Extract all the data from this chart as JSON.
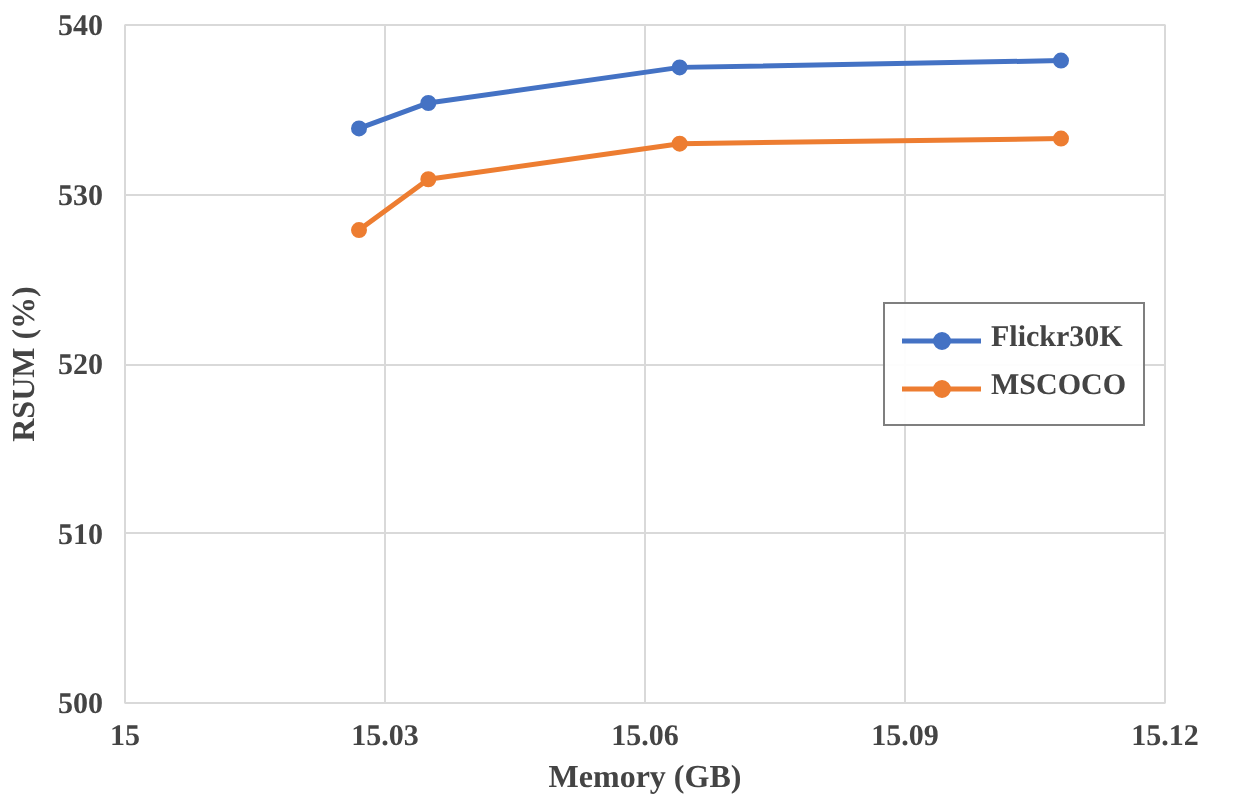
{
  "chart_data": {
    "type": "line",
    "xlabel": "Memory (GB)",
    "ylabel": "RSUM (%)",
    "x": [
      15.027,
      15.035,
      15.064,
      15.108
    ],
    "series": [
      {
        "name": "Flickr30K",
        "color": "#4472c4",
        "values": [
          533.9,
          535.4,
          537.5,
          537.9
        ]
      },
      {
        "name": "MSCOCO",
        "color": "#ed7d31",
        "values": [
          527.9,
          530.9,
          533.0,
          533.3
        ]
      }
    ],
    "xlim": [
      15,
      15.12
    ],
    "xticks": [
      15,
      15.03,
      15.06,
      15.09,
      15.12
    ],
    "ylim": [
      500,
      540
    ],
    "yticks": [
      500,
      510,
      520,
      530,
      540
    ],
    "grid": true,
    "legend": "right",
    "marker": "circle",
    "line_style": "solid"
  }
}
